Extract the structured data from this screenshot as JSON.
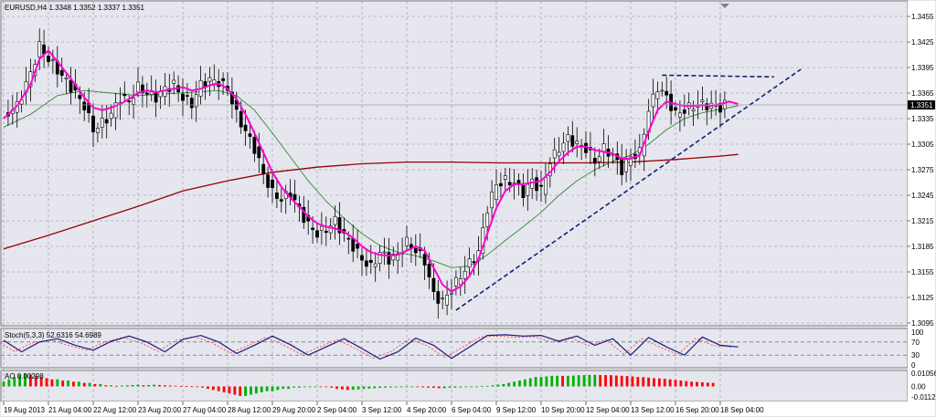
{
  "chart_data": {
    "type": "candlestick",
    "symbol_header": "EURUSD,H4  1.3348 1.3352 1.3337 1.3351",
    "price_axis": [
      "1.3455",
      "1.3425",
      "1.3395",
      "1.3365",
      "1.3335",
      "1.3305",
      "1.3275",
      "1.3245",
      "1.3215",
      "1.3185",
      "1.3155",
      "1.3125",
      "1.3095"
    ],
    "ylim": [
      1.3085,
      1.3465
    ],
    "current_price": "1.3351",
    "time_axis": [
      "19 Aug 2013",
      "21 Aug 04:00",
      "22 Aug 12:00",
      "23 Aug 20:00",
      "27 Aug 04:00",
      "28 Aug 12:00",
      "29 Aug 20:00",
      "2 Sep 04:00",
      "3 Sep 12:00",
      "4 Sep 20:00",
      "6 Sep 04:00",
      "9 Sep 12:00",
      "10 Sep 20:00",
      "12 Sep 04:00",
      "13 Sep 12:00",
      "16 Sep 20:00",
      "18 Sep 04:00"
    ],
    "close_path": [
      [
        0,
        1.3338
      ],
      [
        3,
        1.335
      ],
      [
        6,
        1.3388
      ],
      [
        8,
        1.342
      ],
      [
        10,
        1.3405
      ],
      [
        12,
        1.3392
      ],
      [
        15,
        1.3372
      ],
      [
        18,
        1.335
      ],
      [
        20,
        1.3322
      ],
      [
        22,
        1.333
      ],
      [
        24,
        1.334
      ],
      [
        26,
        1.336
      ],
      [
        28,
        1.3355
      ],
      [
        30,
        1.3372
      ],
      [
        32,
        1.3365
      ],
      [
        34,
        1.336
      ],
      [
        36,
        1.337
      ],
      [
        38,
        1.3375
      ],
      [
        40,
        1.336
      ],
      [
        42,
        1.3352
      ],
      [
        44,
        1.3375
      ],
      [
        46,
        1.338
      ],
      [
        48,
        1.3378
      ],
      [
        50,
        1.337
      ],
      [
        52,
        1.334
      ],
      [
        54,
        1.332
      ],
      [
        56,
        1.33
      ],
      [
        58,
        1.327
      ],
      [
        60,
        1.3248
      ],
      [
        62,
        1.324
      ],
      [
        64,
        1.3248
      ],
      [
        66,
        1.3228
      ],
      [
        68,
        1.321
      ],
      [
        70,
        1.32
      ],
      [
        72,
        1.3205
      ],
      [
        74,
        1.3215
      ],
      [
        76,
        1.3198
      ],
      [
        78,
        1.3185
      ],
      [
        80,
        1.317
      ],
      [
        82,
        1.316
      ],
      [
        84,
        1.3178
      ],
      [
        86,
        1.317
      ],
      [
        88,
        1.3175
      ],
      [
        90,
        1.319
      ],
      [
        92,
        1.318
      ],
      [
        94,
        1.3168
      ],
      [
        96,
        1.3128
      ],
      [
        98,
        1.312
      ],
      [
        100,
        1.3135
      ],
      [
        102,
        1.315
      ],
      [
        104,
        1.3165
      ],
      [
        106,
        1.3178
      ],
      [
        108,
        1.323
      ],
      [
        110,
        1.3258
      ],
      [
        112,
        1.3262
      ],
      [
        114,
        1.326
      ],
      [
        116,
        1.3248
      ],
      [
        118,
        1.3262
      ],
      [
        120,
        1.325
      ],
      [
        122,
        1.3285
      ],
      [
        124,
        1.33
      ],
      [
        126,
        1.3312
      ],
      [
        128,
        1.3305
      ],
      [
        130,
        1.33
      ],
      [
        132,
        1.3285
      ],
      [
        134,
        1.33
      ],
      [
        136,
        1.3292
      ],
      [
        138,
        1.3275
      ],
      [
        140,
        1.329
      ],
      [
        142,
        1.3295
      ],
      [
        144,
        1.3345
      ],
      [
        146,
        1.3372
      ],
      [
        148,
        1.336
      ],
      [
        150,
        1.334
      ],
      [
        152,
        1.3345
      ],
      [
        154,
        1.335
      ],
      [
        156,
        1.3352
      ],
      [
        158,
        1.335
      ],
      [
        160,
        1.3348
      ],
      [
        161,
        1.3351
      ]
    ],
    "ma_fast_path": [
      [
        0,
        1.3335
      ],
      [
        3,
        1.335
      ],
      [
        6,
        1.3375
      ],
      [
        8,
        1.3405
      ],
      [
        10,
        1.3415
      ],
      [
        12,
        1.3402
      ],
      [
        15,
        1.3382
      ],
      [
        18,
        1.336
      ],
      [
        20,
        1.3348
      ],
      [
        22,
        1.3345
      ],
      [
        24,
        1.3348
      ],
      [
        26,
        1.3352
      ],
      [
        28,
        1.3358
      ],
      [
        30,
        1.3365
      ],
      [
        32,
        1.3368
      ],
      [
        34,
        1.3366
      ],
      [
        36,
        1.3368
      ],
      [
        38,
        1.337
      ],
      [
        40,
        1.3372
      ],
      [
        42,
        1.3368
      ],
      [
        44,
        1.337
      ],
      [
        46,
        1.3374
      ],
      [
        48,
        1.3376
      ],
      [
        50,
        1.337
      ],
      [
        52,
        1.3358
      ],
      [
        54,
        1.334
      ],
      [
        56,
        1.3318
      ],
      [
        58,
        1.3295
      ],
      [
        60,
        1.3272
      ],
      [
        62,
        1.3255
      ],
      [
        64,
        1.3242
      ],
      [
        66,
        1.3232
      ],
      [
        68,
        1.322
      ],
      [
        70,
        1.3212
      ],
      [
        72,
        1.3208
      ],
      [
        74,
        1.3206
      ],
      [
        76,
        1.3202
      ],
      [
        78,
        1.3195
      ],
      [
        80,
        1.3185
      ],
      [
        82,
        1.3178
      ],
      [
        84,
        1.3175
      ],
      [
        86,
        1.3174
      ],
      [
        88,
        1.3175
      ],
      [
        90,
        1.318
      ],
      [
        92,
        1.3185
      ],
      [
        94,
        1.318
      ],
      [
        96,
        1.316
      ],
      [
        98,
        1.314
      ],
      [
        100,
        1.3132
      ],
      [
        102,
        1.3138
      ],
      [
        104,
        1.315
      ],
      [
        106,
        1.317
      ],
      [
        108,
        1.32
      ],
      [
        110,
        1.323
      ],
      [
        112,
        1.325
      ],
      [
        114,
        1.3258
      ],
      [
        116,
        1.3258
      ],
      [
        118,
        1.326
      ],
      [
        120,
        1.3262
      ],
      [
        122,
        1.3272
      ],
      [
        124,
        1.3285
      ],
      [
        126,
        1.3295
      ],
      [
        128,
        1.3302
      ],
      [
        130,
        1.3302
      ],
      [
        132,
        1.3298
      ],
      [
        134,
        1.3296
      ],
      [
        136,
        1.3294
      ],
      [
        138,
        1.3288
      ],
      [
        140,
        1.3288
      ],
      [
        142,
        1.3292
      ],
      [
        144,
        1.332
      ],
      [
        146,
        1.3345
      ],
      [
        148,
        1.3355
      ],
      [
        150,
        1.3352
      ],
      [
        152,
        1.335
      ],
      [
        154,
        1.335
      ],
      [
        156,
        1.3351
      ],
      [
        158,
        1.335
      ],
      [
        160,
        1.3352
      ],
      [
        162,
        1.3355
      ],
      [
        164,
        1.3352
      ]
    ],
    "ma_mid_path": [
      [
        0,
        1.3325
      ],
      [
        6,
        1.334
      ],
      [
        12,
        1.3362
      ],
      [
        18,
        1.3368
      ],
      [
        24,
        1.3365
      ],
      [
        30,
        1.3362
      ],
      [
        36,
        1.3364
      ],
      [
        42,
        1.3366
      ],
      [
        48,
        1.3368
      ],
      [
        52,
        1.3362
      ],
      [
        56,
        1.3345
      ],
      [
        60,
        1.3318
      ],
      [
        64,
        1.329
      ],
      [
        68,
        1.3262
      ],
      [
        72,
        1.3238
      ],
      [
        76,
        1.3218
      ],
      [
        80,
        1.32
      ],
      [
        84,
        1.3186
      ],
      [
        88,
        1.3178
      ],
      [
        92,
        1.3174
      ],
      [
        96,
        1.3168
      ],
      [
        100,
        1.316
      ],
      [
        104,
        1.3162
      ],
      [
        108,
        1.3175
      ],
      [
        112,
        1.3192
      ],
      [
        116,
        1.3208
      ],
      [
        120,
        1.3225
      ],
      [
        124,
        1.3245
      ],
      [
        128,
        1.3262
      ],
      [
        132,
        1.3275
      ],
      [
        136,
        1.3285
      ],
      [
        140,
        1.3292
      ],
      [
        144,
        1.3305
      ],
      [
        148,
        1.3322
      ],
      [
        152,
        1.3335
      ],
      [
        156,
        1.3342
      ],
      [
        160,
        1.3346
      ],
      [
        164,
        1.335
      ]
    ],
    "ma_slow_path": [
      [
        0,
        1.3182
      ],
      [
        10,
        1.3198
      ],
      [
        20,
        1.3215
      ],
      [
        30,
        1.3232
      ],
      [
        40,
        1.325
      ],
      [
        50,
        1.3262
      ],
      [
        60,
        1.3272
      ],
      [
        70,
        1.3278
      ],
      [
        80,
        1.3282
      ],
      [
        90,
        1.3284
      ],
      [
        100,
        1.3284
      ],
      [
        110,
        1.3283
      ],
      [
        120,
        1.3283
      ],
      [
        130,
        1.3283
      ],
      [
        140,
        1.3284
      ],
      [
        150,
        1.3287
      ],
      [
        160,
        1.3291
      ],
      [
        164,
        1.3293
      ]
    ],
    "trendline": [
      [
        101,
        1.311
      ],
      [
        178,
        1.3393
      ]
    ],
    "resistance_line": [
      [
        147,
        1.3386
      ],
      [
        172,
        1.3384
      ]
    ],
    "stoch_header": "Stoch(5,3,3) 52.6316 54.6989",
    "stoch_axis": [
      "100",
      "70",
      "30",
      "0"
    ],
    "stoch_path": [
      [
        0,
        75
      ],
      [
        4,
        40
      ],
      [
        8,
        70
      ],
      [
        12,
        80
      ],
      [
        16,
        60
      ],
      [
        20,
        45
      ],
      [
        24,
        72
      ],
      [
        28,
        88
      ],
      [
        32,
        70
      ],
      [
        36,
        40
      ],
      [
        40,
        78
      ],
      [
        44,
        90
      ],
      [
        48,
        70
      ],
      [
        52,
        35
      ],
      [
        56,
        60
      ],
      [
        60,
        88
      ],
      [
        64,
        62
      ],
      [
        68,
        30
      ],
      [
        72,
        55
      ],
      [
        76,
        80
      ],
      [
        80,
        50
      ],
      [
        84,
        18
      ],
      [
        88,
        40
      ],
      [
        92,
        82
      ],
      [
        96,
        60
      ],
      [
        100,
        20
      ],
      [
        104,
        55
      ],
      [
        108,
        90
      ],
      [
        112,
        92
      ],
      [
        116,
        88
      ],
      [
        120,
        90
      ],
      [
        124,
        72
      ],
      [
        128,
        88
      ],
      [
        132,
        60
      ],
      [
        136,
        80
      ],
      [
        140,
        30
      ],
      [
        144,
        84
      ],
      [
        148,
        55
      ],
      [
        152,
        30
      ],
      [
        156,
        85
      ],
      [
        160,
        60
      ],
      [
        164,
        55
      ]
    ],
    "ao_header": "AO 0.00298",
    "ao_axis": [
      "0.01056",
      "0.00",
      "-0.0112"
    ],
    "ao_values": [
      0.004,
      0.006,
      0.008,
      0.01,
      0.011,
      0.01,
      0.009,
      0.008,
      0.007,
      0.006,
      0.006,
      0.005,
      0.005,
      0.004,
      0.004,
      0.003,
      0.003,
      0.002,
      0.002,
      0.001,
      0.001,
      0.0005,
      0.0008,
      0.001,
      0.0012,
      0.0015,
      0.001,
      0.0012,
      0.0015,
      0.0012,
      0.001,
      0.0008,
      0.0006,
      0.0004,
      0.0002,
      0.0001,
      -0.0005,
      -0.001,
      -0.002,
      -0.003,
      -0.004,
      -0.005,
      -0.006,
      -0.007,
      -0.008,
      -0.008,
      -0.007,
      -0.006,
      -0.005,
      -0.004,
      -0.004,
      -0.003,
      -0.002,
      -0.002,
      -0.001,
      -0.001,
      -0.0005,
      -0.0002,
      -0.0002,
      -0.0003,
      -0.0005,
      -0.001,
      -0.002,
      -0.0025,
      -0.003,
      -0.0028,
      -0.0025,
      -0.002,
      -0.0018,
      -0.0015,
      -0.0012,
      -0.001,
      -0.0008,
      -0.0007,
      -0.0006,
      -0.0005,
      -0.0005,
      -0.0006,
      -0.0008,
      -0.001,
      -0.0012,
      -0.0015,
      -0.0015,
      -0.0012,
      -0.001,
      -0.0008,
      -0.0005,
      -0.0003,
      -0.0002,
      0.0002,
      0.0005,
      0.001,
      0.0015,
      0.002,
      0.003,
      0.004,
      0.005,
      0.006,
      0.007,
      0.008,
      0.008,
      0.0085,
      0.009,
      0.009,
      0.0088,
      0.009,
      0.0092,
      0.0095,
      0.0096,
      0.0098,
      0.0098,
      0.0097,
      0.0096,
      0.0095,
      0.0092,
      0.009,
      0.0088,
      0.0085,
      0.008,
      0.0078,
      0.0075,
      0.007,
      0.0068,
      0.0065,
      0.006,
      0.0055,
      0.005,
      0.0045,
      0.004,
      0.0038,
      0.0035,
      0.0032,
      0.003
    ]
  },
  "ui": {
    "accent_up": "#000000",
    "accent_down": "#000000",
    "ma_fast_color": "#ff00d0",
    "ma_mid_color": "#2e8b2e",
    "ma_slow_color": "#990000",
    "trend_color": "#1a1a7a",
    "stoch_main_color": "#1a1a7a",
    "stoch_signal_color": "#ff3030",
    "ao_up_color": "#00b000",
    "ao_down_color": "#ff0000"
  }
}
